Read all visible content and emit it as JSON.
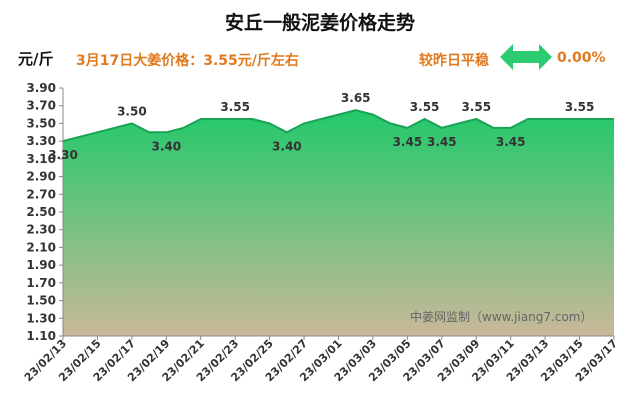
{
  "header": {
    "title": "安丘一般泥姜价格走势",
    "unit": "元/斤",
    "price_note": "3月17日大姜价格：3.55元/斤左右",
    "change_label": "较昨日平稳",
    "change_value": "0.00%",
    "arrow_icon": "double-arrow-icon",
    "arrow_color": "#2ecc71",
    "accent_color": "#e07a1f"
  },
  "watermark": "中姜网监制（www.jiang7.com）",
  "chart_data": {
    "type": "area",
    "title": "安丘一般泥姜价格走势",
    "ylabel": "元/斤",
    "ylim": [
      1.1,
      3.9
    ],
    "yticks": [
      "3.90",
      "3.70",
      "3.50",
      "3.30",
      "3.10",
      "2.90",
      "2.70",
      "2.50",
      "2.30",
      "2.10",
      "1.90",
      "1.70",
      "1.50",
      "1.30",
      "1.10"
    ],
    "ytick_values": [
      3.9,
      3.7,
      3.5,
      3.3,
      3.1,
      2.9,
      2.7,
      2.5,
      2.3,
      2.1,
      1.9,
      1.7,
      1.5,
      1.3,
      1.1
    ],
    "xticks": [
      "23/02/13",
      "23/02/15",
      "23/02/17",
      "23/02/19",
      "23/02/21",
      "23/02/23",
      "23/02/25",
      "23/02/27",
      "23/03/01",
      "23/03/03",
      "23/03/05",
      "23/03/07",
      "23/03/09",
      "23/03/11",
      "23/03/13",
      "23/03/15",
      "23/03/17"
    ],
    "x": [
      "23/02/13",
      "23/02/14",
      "23/02/15",
      "23/02/16",
      "23/02/17",
      "23/02/18",
      "23/02/19",
      "23/02/20",
      "23/02/21",
      "23/02/22",
      "23/02/23",
      "23/02/24",
      "23/02/25",
      "23/02/26",
      "23/02/27",
      "23/02/28",
      "23/03/01",
      "23/03/02",
      "23/03/03",
      "23/03/04",
      "23/03/05",
      "23/03/06",
      "23/03/07",
      "23/03/08",
      "23/03/09",
      "23/03/10",
      "23/03/11",
      "23/03/12",
      "23/03/13",
      "23/03/14",
      "23/03/15",
      "23/03/16",
      "23/03/17"
    ],
    "values": [
      3.3,
      3.35,
      3.4,
      3.45,
      3.5,
      3.4,
      3.4,
      3.45,
      3.55,
      3.55,
      3.55,
      3.55,
      3.5,
      3.4,
      3.5,
      3.55,
      3.6,
      3.65,
      3.6,
      3.5,
      3.45,
      3.55,
      3.45,
      3.5,
      3.55,
      3.45,
      3.45,
      3.55,
      3.55,
      3.55,
      3.55,
      3.55,
      3.55
    ],
    "data_labels": [
      {
        "x": "23/02/13",
        "text": "3.30",
        "pos": "below"
      },
      {
        "x": "23/02/17",
        "text": "3.50",
        "pos": "above"
      },
      {
        "x": "23/02/19",
        "text": "3.40",
        "pos": "below"
      },
      {
        "x": "23/02/23",
        "text": "3.55",
        "pos": "above"
      },
      {
        "x": "23/02/26",
        "text": "3.40",
        "pos": "below"
      },
      {
        "x": "23/03/02",
        "text": "3.65",
        "pos": "above"
      },
      {
        "x": "23/03/05",
        "text": "3.45",
        "pos": "below"
      },
      {
        "x": "23/03/06",
        "text": "3.55",
        "pos": "above"
      },
      {
        "x": "23/03/07",
        "text": "3.45",
        "pos": "below"
      },
      {
        "x": "23/03/09",
        "text": "3.55",
        "pos": "above"
      },
      {
        "x": "23/03/11",
        "text": "3.45",
        "pos": "below"
      },
      {
        "x": "23/03/15",
        "text": "3.55",
        "pos": "above"
      }
    ],
    "fill_top_color": "#22c96a",
    "fill_bottom_color": "#c9b89a",
    "line_color": "#1aa355",
    "grid": false,
    "legend": "none"
  }
}
